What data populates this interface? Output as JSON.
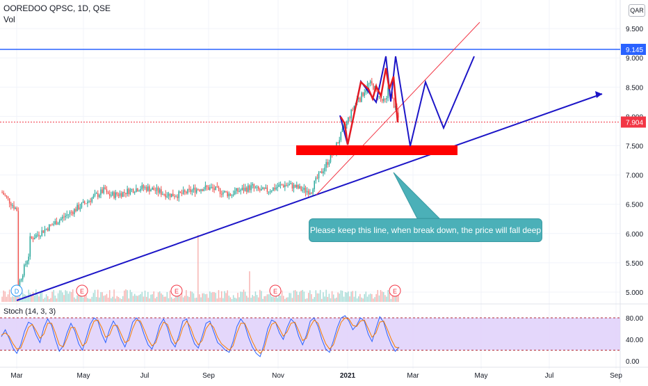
{
  "header": {
    "symbol_line": "OOREDOO QPSC, 1D, QSE",
    "vol_label": "Vol",
    "currency": "QAR",
    "stoch_label": "Stoch (14, 3, 3)"
  },
  "annotation": {
    "text": "Please keep this line, when break down, the price will fall deep"
  },
  "chart_data": [
    {
      "type": "candlestick",
      "x_tick_labels": [
        "Mar",
        "May",
        "Jul",
        "Sep",
        "Nov",
        "2021",
        "Mar",
        "May",
        "Jul",
        "Sep"
      ],
      "y_tick_labels": [
        "9.500",
        "9.000",
        "8.500",
        "8.000",
        "7.500",
        "7.000",
        "6.500",
        "6.000",
        "5.500",
        "5.000"
      ],
      "ylim": [
        4.85,
        9.8
      ],
      "price_labels": [
        {
          "value": "9.145",
          "color": "#2962ff"
        },
        {
          "value": "7.904",
          "color": "#f23645"
        }
      ],
      "horizontal_lines": [
        {
          "value": 9.145,
          "color": "#2962ff"
        },
        {
          "value": 7.904,
          "color": "#f23645",
          "dashed": true
        }
      ],
      "event_markers": [
        "D",
        "E",
        "E",
        "E",
        "E"
      ],
      "colors": {
        "up": "#26a69a",
        "down": "#ef5350",
        "drawing": "#1c15c7",
        "zone": "#ff0000"
      }
    },
    {
      "type": "line",
      "title": "Stoch (14, 3, 3)",
      "y_tick_labels": [
        "80.00",
        "40.00",
        "0.00"
      ],
      "ylim": [
        0,
        100
      ],
      "bands": [
        20,
        80
      ],
      "series": [
        {
          "color": "#2962ff",
          "values": [
            45,
            58,
            42,
            24,
            14,
            30,
            55,
            72,
            68,
            48,
            34,
            62,
            78,
            66,
            40,
            18,
            28,
            52,
            70,
            56,
            32,
            20,
            44,
            68,
            80,
            74,
            50,
            34,
            58,
            74,
            62,
            40,
            26,
            46,
            72,
            80,
            70,
            48,
            30,
            22,
            40,
            66,
            78,
            62,
            36,
            26,
            48,
            74,
            78,
            52,
            32,
            24,
            46,
            70,
            74,
            54,
            34,
            28,
            20,
            16,
            36,
            64,
            78,
            68,
            44,
            26,
            14,
            8,
            30,
            60,
            76,
            72,
            52,
            40,
            62,
            78,
            70,
            46,
            30,
            48,
            74,
            80,
            64,
            40,
            22,
            16,
            38,
            62,
            80,
            84,
            74,
            58,
            66,
            80,
            74,
            50,
            36,
            60,
            82,
            72,
            48,
            30,
            18,
            26
          ]
        },
        {
          "color": "#f57c00",
          "values": [
            48,
            52,
            46,
            32,
            22,
            24,
            42,
            62,
            68,
            56,
            42,
            50,
            70,
            70,
            52,
            30,
            26,
            42,
            62,
            62,
            44,
            28,
            34,
            56,
            74,
            76,
            62,
            44,
            48,
            66,
            66,
            50,
            34,
            38,
            60,
            76,
            74,
            58,
            40,
            28,
            34,
            56,
            72,
            68,
            48,
            32,
            40,
            62,
            74,
            62,
            42,
            30,
            38,
            60,
            70,
            62,
            44,
            32,
            26,
            20,
            28,
            52,
            70,
            70,
            54,
            36,
            22,
            14,
            22,
            48,
            68,
            72,
            60,
            46,
            54,
            70,
            72,
            56,
            38,
            42,
            64,
            76,
            70,
            50,
            32,
            22,
            30,
            52,
            72,
            80,
            78,
            66,
            64,
            74,
            76,
            60,
            44,
            52,
            72,
            74,
            58,
            40,
            26,
            24
          ]
        }
      ]
    }
  ]
}
